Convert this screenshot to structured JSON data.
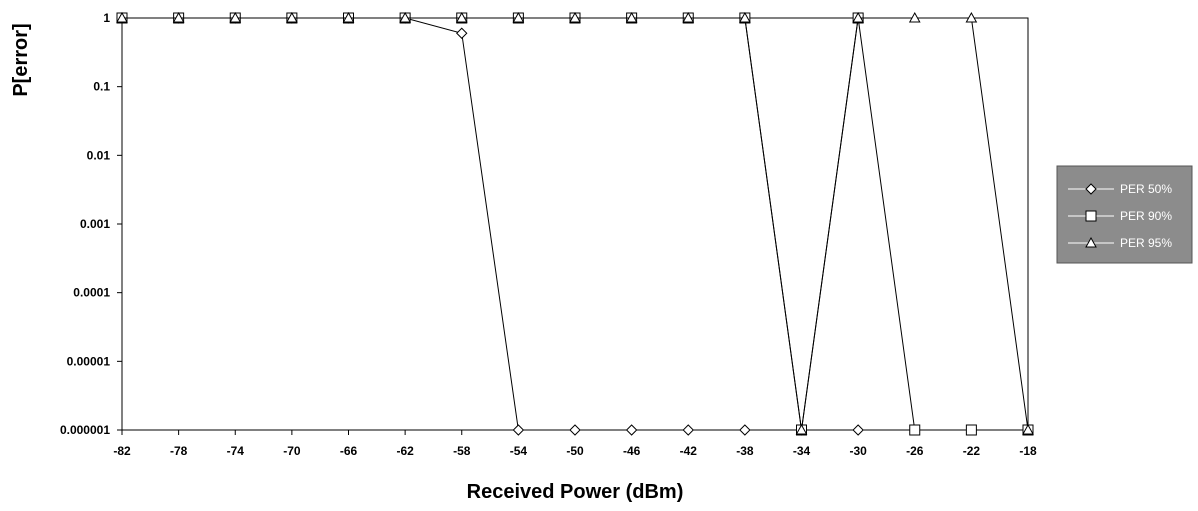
{
  "chart_data": {
    "type": "line",
    "xlabel": "Received Power (dBm)",
    "ylabel": "P[error]",
    "x": [
      -82,
      -78,
      -74,
      -70,
      -66,
      -62,
      -58,
      -54,
      -50,
      -46,
      -42,
      -38,
      -34,
      -30,
      -26,
      -22,
      -18
    ],
    "xlim": [
      -82,
      -18
    ],
    "ylim": [
      1e-06,
      1
    ],
    "yscale": "log",
    "x_tick_labels": [
      "-82",
      "-78",
      "-74",
      "-70",
      "-66",
      "-62",
      "-58",
      "-54",
      "-50",
      "-46",
      "-42",
      "-38",
      "-34",
      "-30",
      "-26",
      "-22",
      "-18"
    ],
    "y_ticks": [
      1,
      0.1,
      0.01,
      0.001,
      0.0001,
      1e-05,
      1e-06
    ],
    "y_tick_labels": [
      "1",
      "0.1",
      "0.01",
      "0.001",
      "0.0001",
      "0.00001",
      "0.000001"
    ],
    "grid": false,
    "legend_position": "right",
    "series": [
      {
        "name": "PER 50%",
        "marker": "diamond",
        "values": [
          1,
          1,
          1,
          1,
          1,
          1,
          0.6,
          1e-06,
          1e-06,
          1e-06,
          1e-06,
          1e-06,
          1e-06,
          1e-06,
          null,
          null,
          null
        ]
      },
      {
        "name": "PER 90%",
        "marker": "square",
        "values": [
          1,
          1,
          1,
          1,
          1,
          1,
          1,
          1,
          1,
          1,
          1,
          1,
          1e-06,
          1,
          1e-06,
          1e-06,
          1e-06
        ]
      },
      {
        "name": "PER 95%",
        "marker": "triangle",
        "values": [
          1,
          1,
          1,
          1,
          1,
          1,
          1,
          1,
          1,
          1,
          1,
          1,
          1e-06,
          1,
          1,
          1,
          1e-06
        ]
      }
    ]
  },
  "colors": {
    "line": "#000000",
    "marker_fill": "#ffffff",
    "legend_bg": "#8c8c8c"
  }
}
